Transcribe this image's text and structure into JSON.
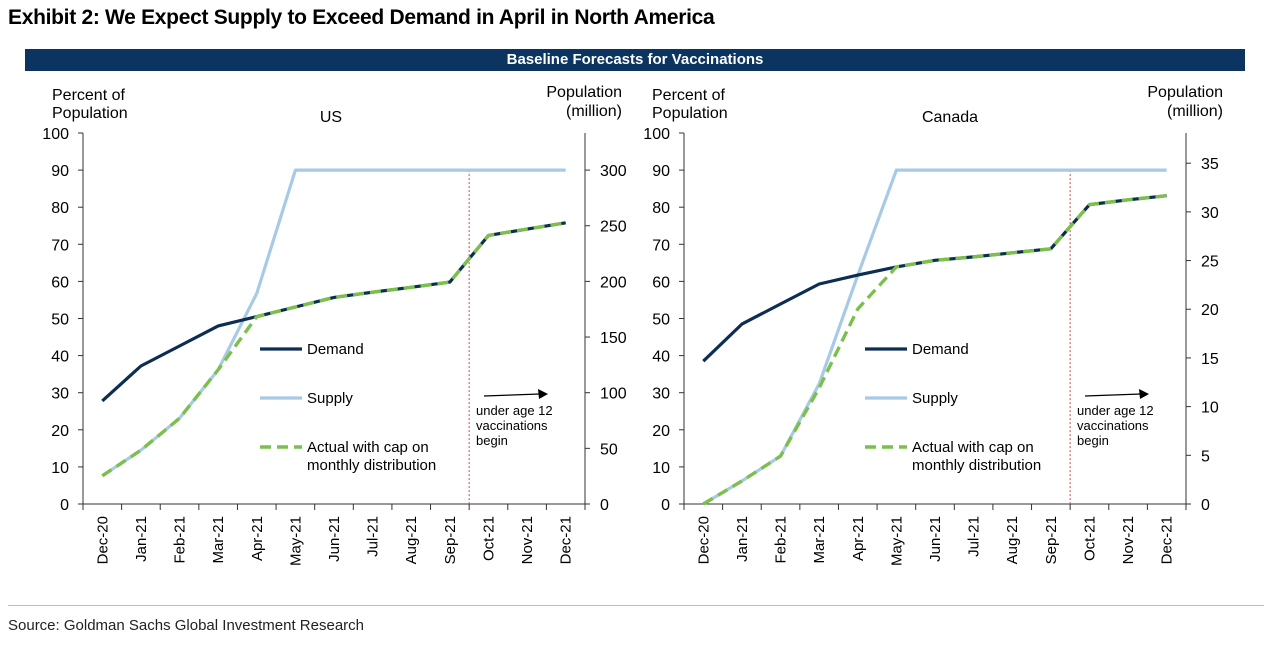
{
  "title": "Exhibit 2: We Expect Supply to Exceed Demand in April in North America",
  "banner": "Baseline Forecasts for Vaccinations",
  "source": "Source: Goldman Sachs Global Investment Research",
  "colors": {
    "demand": "#0d2d52",
    "supply": "#a7cbe6",
    "actual": "#7cc04c",
    "marker": "#c0504d",
    "banner": "#0b3461"
  },
  "chart_data": [
    {
      "type": "line",
      "title": "US",
      "ylabel_left": [
        "Percent of",
        "Population"
      ],
      "ylabel_right": [
        "Population",
        "(million)"
      ],
      "categories": [
        "Dec-20",
        "Jan-21",
        "Feb-21",
        "Mar-21",
        "Apr-21",
        "May-21",
        "Jun-21",
        "Jul-21",
        "Aug-21",
        "Sep-21",
        "Oct-21",
        "Nov-21",
        "Dec-21"
      ],
      "ylim_left": [
        0,
        100
      ],
      "yticks_left": [
        0,
        10,
        20,
        30,
        40,
        50,
        60,
        70,
        80,
        90,
        100
      ],
      "ylim_right": [
        0,
        333.33
      ],
      "yticks_right": [
        0,
        50,
        100,
        150,
        200,
        250,
        300
      ],
      "grid": false,
      "legend_placement": "center",
      "series": [
        {
          "name": "Demand",
          "style": "solid-dark",
          "values": [
            27.8,
            37.2,
            42.6,
            48.0,
            50.5,
            53.1,
            55.7,
            57.1,
            58.4,
            59.8,
            72.4,
            74.1,
            75.8
          ]
        },
        {
          "name": "Supply",
          "style": "solid-light",
          "values": [
            7.6,
            14.5,
            23.1,
            36.2,
            56.8,
            90,
            90,
            90,
            90,
            90,
            90,
            90,
            90
          ]
        },
        {
          "name": "Actual with cap on monthly distribution",
          "style": "dashed-green",
          "values": [
            7.6,
            14.5,
            23.1,
            36.2,
            50.5,
            53.1,
            55.7,
            57.1,
            58.4,
            59.8,
            72.4,
            74.1,
            75.8
          ]
        }
      ],
      "marker_line_at": "Sep-21",
      "annotation": [
        "under age 12",
        "vaccinations",
        "begin"
      ]
    },
    {
      "type": "line",
      "title": "Canada",
      "ylabel_left": [
        "Percent of",
        "Population"
      ],
      "ylabel_right": [
        "Population",
        "(million)"
      ],
      "categories": [
        "Dec-20",
        "Jan-21",
        "Feb-21",
        "Mar-21",
        "Apr-21",
        "May-21",
        "Jun-21",
        "Jul-21",
        "Aug-21",
        "Sep-21",
        "Oct-21",
        "Nov-21",
        "Dec-21"
      ],
      "ylim_left": [
        0,
        100
      ],
      "yticks_left": [
        0,
        10,
        20,
        30,
        40,
        50,
        60,
        70,
        80,
        90,
        100
      ],
      "ylim_right": [
        0,
        38.1
      ],
      "yticks_right": [
        0,
        5,
        10,
        15,
        20,
        25,
        30,
        35
      ],
      "grid": false,
      "legend_placement": "center",
      "series": [
        {
          "name": "Demand",
          "style": "solid-dark",
          "values": [
            38.5,
            48.5,
            53.9,
            59.3,
            61.7,
            63.9,
            65.7,
            66.6,
            67.7,
            68.8,
            80.7,
            82.0,
            83.1
          ]
        },
        {
          "name": "Supply",
          "style": "solid-light",
          "values": [
            0,
            6.2,
            12.9,
            32.4,
            61.7,
            90,
            90,
            90,
            90,
            90,
            90,
            90,
            90
          ]
        },
        {
          "name": "Actual with cap on monthly distribution",
          "style": "dashed-green",
          "values": [
            0,
            6.2,
            12.9,
            31.3,
            52.6,
            63.9,
            65.7,
            66.6,
            67.7,
            68.8,
            80.7,
            82.0,
            83.1
          ]
        }
      ],
      "marker_line_at": "Sep-21",
      "annotation": [
        "under age 12",
        "vaccinations",
        "begin"
      ]
    }
  ]
}
